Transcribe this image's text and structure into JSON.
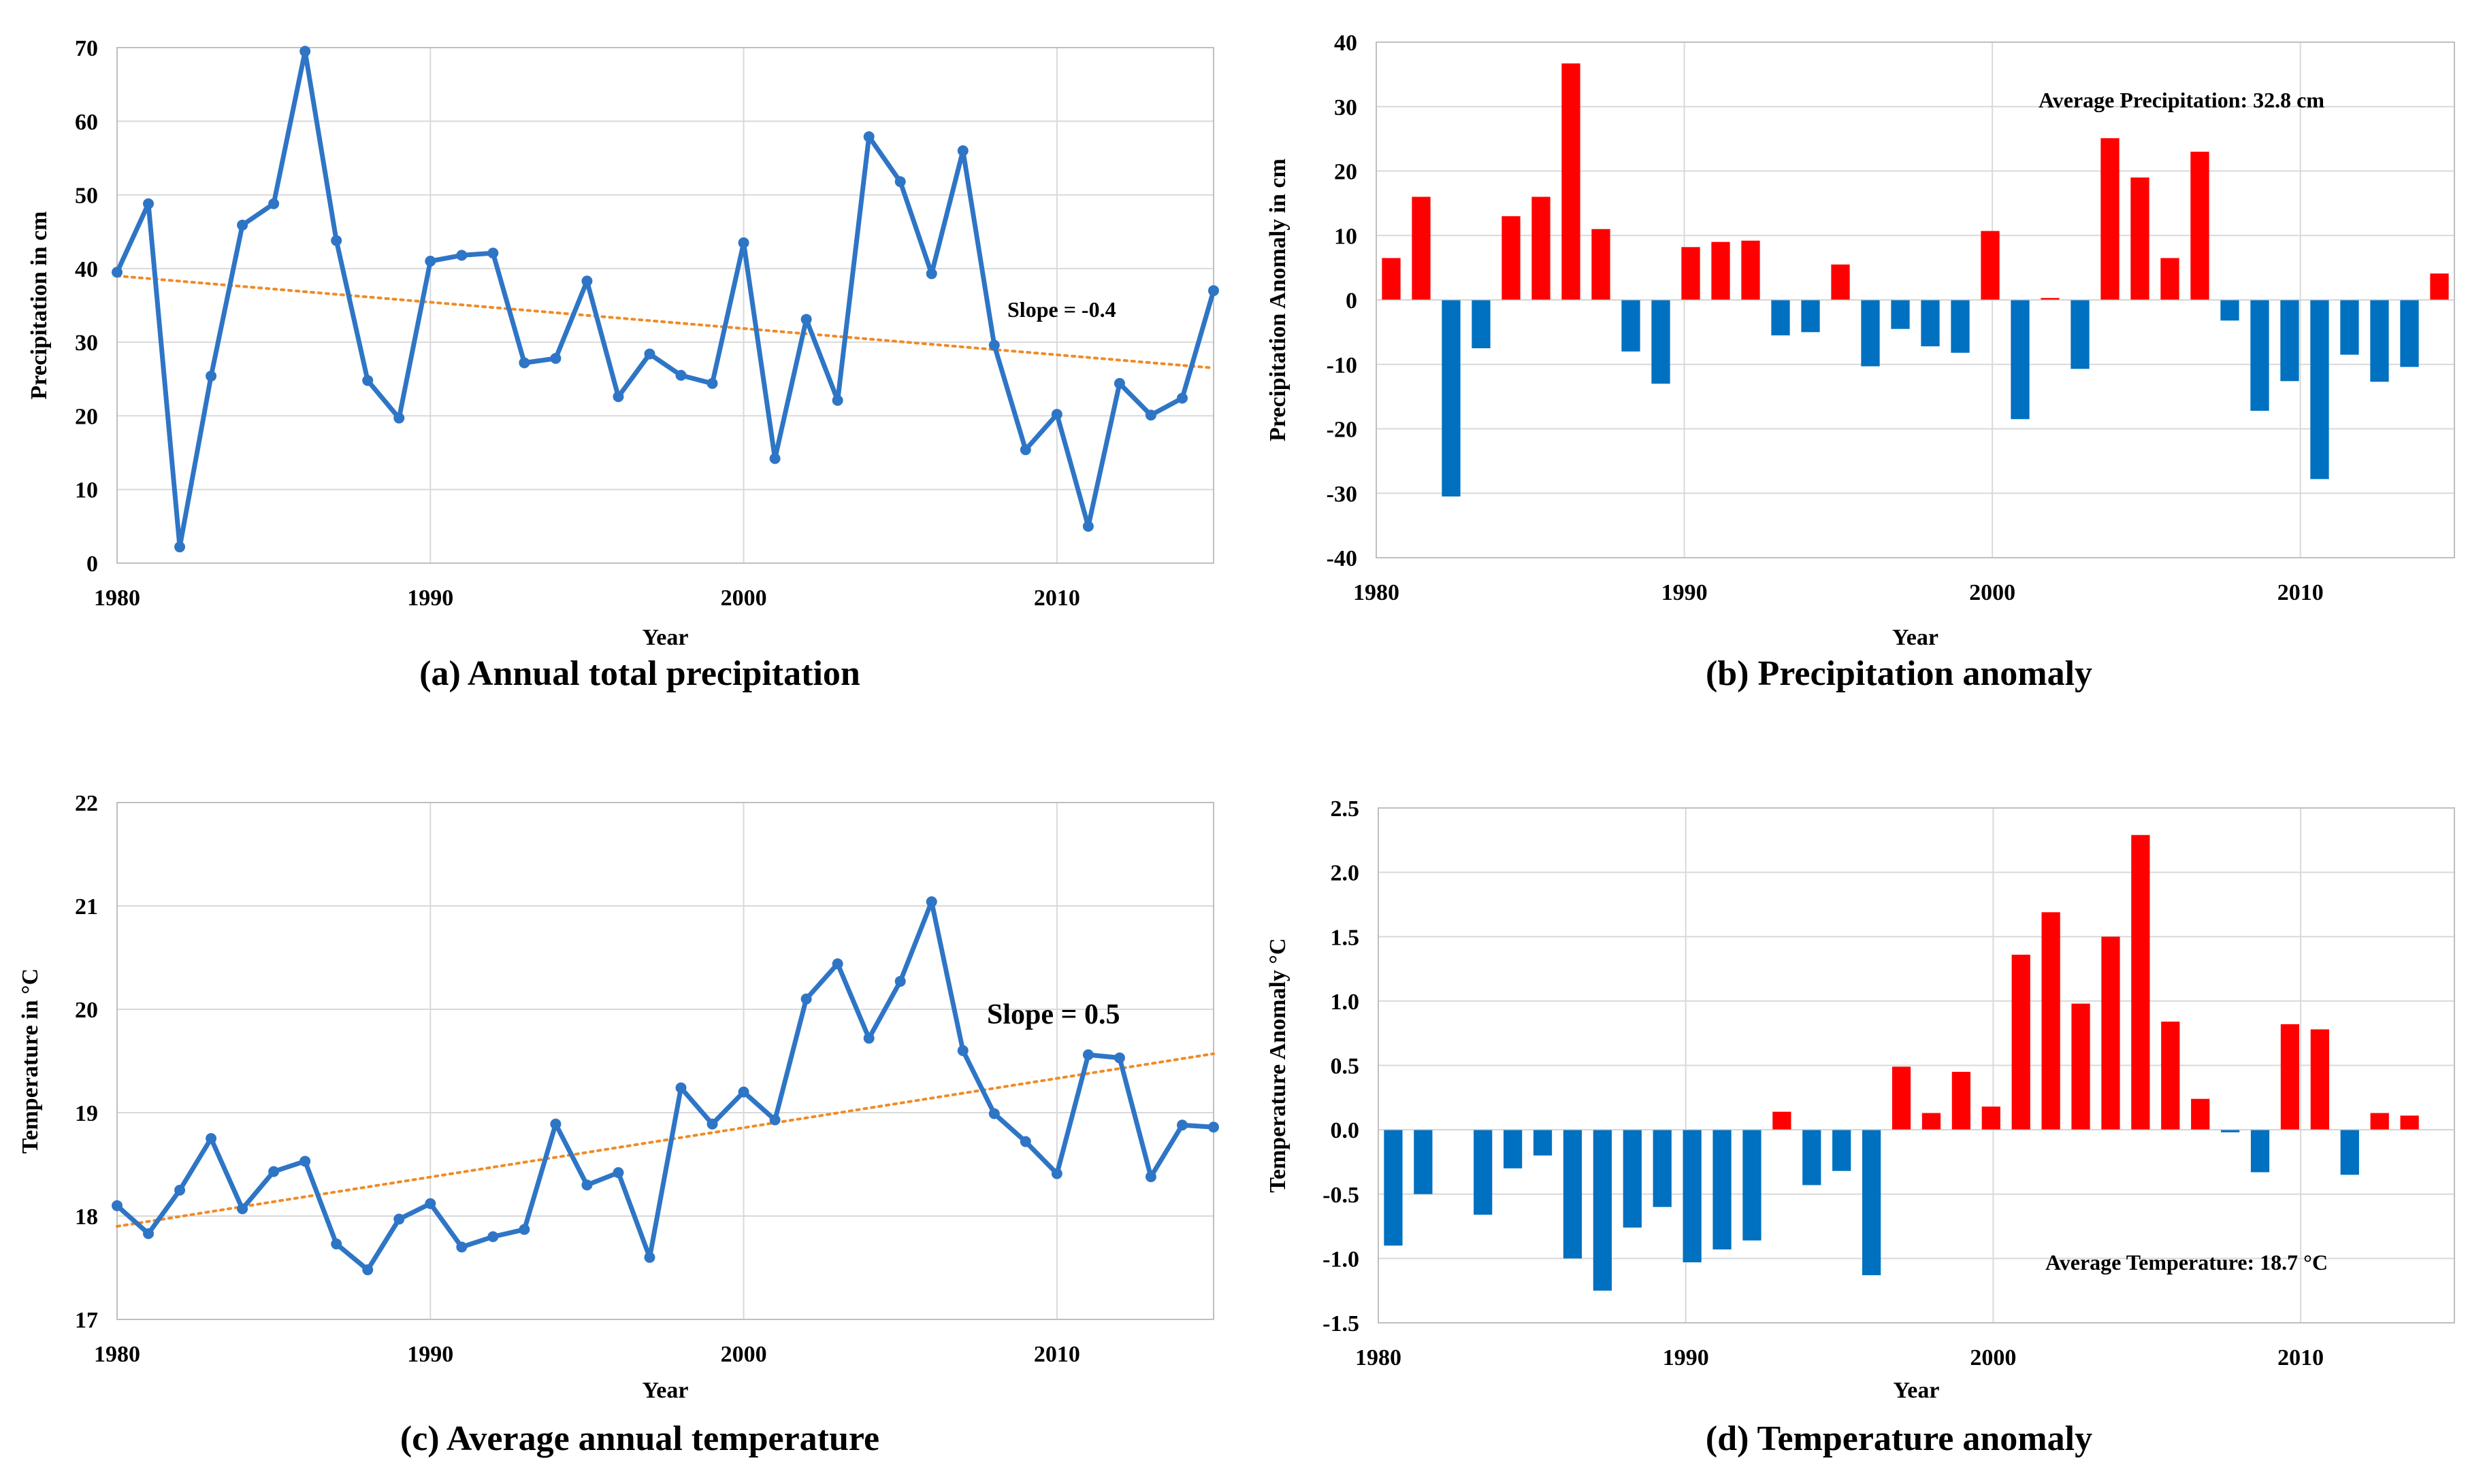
{
  "colors": {
    "line": "#2e75c6",
    "trend": "#f08a24",
    "positive": "#ff0000",
    "negative": "#0070c0",
    "grid": "#d9d9d9"
  },
  "chart_data": [
    {
      "id": "a",
      "type": "line",
      "caption": "(a) Annual  total precipitation",
      "xlabel": "Year",
      "ylabel": "Precipitation in cm",
      "xlim": [
        1980,
        2015
      ],
      "ylim": [
        0,
        70
      ],
      "xticks": [
        1980,
        1990,
        2000,
        2010
      ],
      "yticks": [
        0,
        10,
        20,
        30,
        40,
        50,
        60,
        70
      ],
      "x": [
        1980,
        1981,
        1982,
        1983,
        1984,
        1985,
        1986,
        1987,
        1988,
        1989,
        1990,
        1991,
        1992,
        1993,
        1994,
        1995,
        1996,
        1997,
        1998,
        1999,
        2000,
        2001,
        2002,
        2003,
        2004,
        2005,
        2006,
        2007,
        2008,
        2009,
        2010,
        2011,
        2012,
        2013,
        2014,
        2015
      ],
      "values": [
        39.5,
        48.8,
        2.2,
        25.4,
        45.9,
        48.8,
        69.5,
        43.8,
        24.8,
        19.7,
        41,
        41.8,
        42.1,
        27.2,
        27.8,
        38.3,
        22.6,
        28.4,
        25.5,
        24.4,
        43.5,
        14.2,
        33.1,
        22.1,
        57.9,
        51.8,
        39.3,
        56,
        29.6,
        15.4,
        20.2,
        5,
        24.4,
        20.1,
        22.4,
        37
      ],
      "trend": {
        "start": 39,
        "end": 26.5,
        "label": "Slope = -0.4"
      }
    },
    {
      "id": "b",
      "type": "bar",
      "caption": "(b) Precipitation  anomaly",
      "xlabel": "Year",
      "ylabel": "Precipitation Anomaly in cm",
      "xlim": [
        1980,
        2015
      ],
      "ylim": [
        -40,
        40
      ],
      "xticks": [
        1980,
        1990,
        2000,
        2010
      ],
      "yticks": [
        -40,
        -30,
        -20,
        -10,
        0,
        10,
        20,
        30,
        40
      ],
      "x": [
        1980,
        1981,
        1982,
        1983,
        1984,
        1985,
        1986,
        1987,
        1988,
        1989,
        1990,
        1991,
        1992,
        1993,
        1994,
        1995,
        1996,
        1997,
        1998,
        1999,
        2000,
        2001,
        2002,
        2003,
        2004,
        2005,
        2006,
        2007,
        2008,
        2009,
        2010,
        2011,
        2012,
        2013,
        2014,
        2015
      ],
      "values": [
        6.5,
        16,
        -30.5,
        -7.5,
        13,
        16,
        36.7,
        11,
        -8,
        -13,
        8.2,
        9,
        9.2,
        -5.5,
        -5,
        5.5,
        -10.3,
        -4.5,
        -7.2,
        -8.2,
        10.7,
        -18.5,
        0.3,
        -10.7,
        25.1,
        19,
        6.5,
        23,
        -3.2,
        -17.2,
        -12.6,
        -27.8,
        -8.5,
        -12.7,
        -10.4,
        4.1
      ],
      "annotation": "Average Precipitation: 32.8 cm"
    },
    {
      "id": "c",
      "type": "line",
      "caption": "(c) Average annual temperature",
      "xlabel": "Year",
      "ylabel": "Temperature in °C",
      "xlim": [
        1980,
        2015
      ],
      "ylim": [
        17,
        22
      ],
      "xticks": [
        1980,
        1990,
        2000,
        2010
      ],
      "yticks": [
        17,
        18,
        19,
        20,
        21,
        22
      ],
      "x": [
        1980,
        1981,
        1982,
        1983,
        1984,
        1985,
        1986,
        1987,
        1988,
        1989,
        1990,
        1991,
        1992,
        1993,
        1994,
        1995,
        1996,
        1997,
        1998,
        1999,
        2000,
        2001,
        2002,
        2003,
        2004,
        2005,
        2006,
        2007,
        2008,
        2009,
        2010,
        2011,
        2012,
        2013,
        2014,
        2015
      ],
      "values": [
        18.1,
        17.83,
        18.25,
        18.75,
        18.07,
        18.43,
        18.53,
        17.73,
        17.48,
        17.97,
        18.12,
        17.7,
        17.8,
        17.87,
        18.89,
        18.3,
        18.42,
        17.6,
        19.24,
        18.89,
        19.2,
        18.93,
        20.1,
        20.44,
        19.72,
        20.27,
        21.04,
        19.6,
        18.99,
        18.72,
        18.41,
        19.56,
        19.53,
        18.38,
        18.88,
        18.86
      ],
      "trend": {
        "start": 17.9,
        "end": 19.57,
        "label": "Slope = 0.5"
      }
    },
    {
      "id": "d",
      "type": "bar",
      "caption": "(d) Temperature  anomaly",
      "xlabel": "Year",
      "ylabel": "Temperature Anomaly °C",
      "xlim": [
        1980,
        2015
      ],
      "ylim": [
        -1.5,
        2.5
      ],
      "xticks": [
        1980,
        1990,
        2000,
        2010
      ],
      "yticks": [
        -1.5,
        -1.0,
        -0.5,
        0.0,
        0.5,
        1.0,
        1.5,
        2.0,
        2.5
      ],
      "x": [
        1980,
        1981,
        1982,
        1983,
        1984,
        1985,
        1986,
        1987,
        1988,
        1989,
        1990,
        1991,
        1992,
        1993,
        1994,
        1995,
        1996,
        1997,
        1998,
        1999,
        2000,
        2001,
        2002,
        2003,
        2004,
        2005,
        2006,
        2007,
        2008,
        2009,
        2010,
        2011,
        2012,
        2013,
        2014,
        2015
      ],
      "values": [
        -0.9,
        -0.5,
        0,
        -0.66,
        -0.3,
        -0.2,
        -1.0,
        -1.25,
        -0.76,
        -0.6,
        -1.03,
        -0.93,
        -0.86,
        0.14,
        -0.43,
        -0.32,
        -1.13,
        0.49,
        0.13,
        0.45,
        0.18,
        1.36,
        1.69,
        0.98,
        1.5,
        2.29,
        0.84,
        0.24,
        -0.02,
        -0.33,
        0.82,
        0.78,
        -0.35,
        0.13,
        0.11,
        0
      ],
      "annotation": "Average Temperature: 18.7 °C"
    }
  ]
}
